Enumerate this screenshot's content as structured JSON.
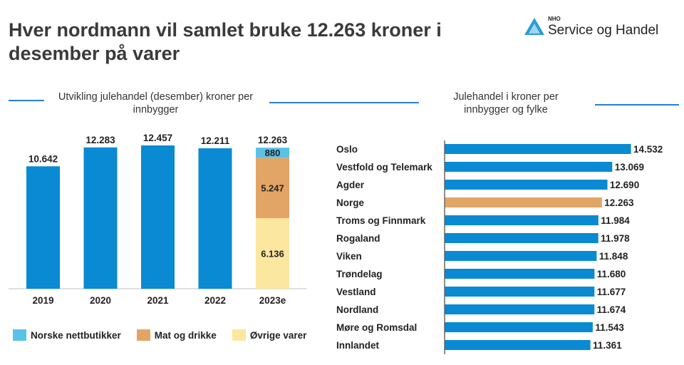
{
  "header": {
    "title": "Hver nordmann vil samlet bruke 12.263 kroner i desember på varer",
    "logo_small": "NHO",
    "logo_main": "Service og Handel"
  },
  "colors": {
    "bar_blue": "#0a8ad2",
    "accent_orange": "#e3a566",
    "nettbutikker": "#5bc2e7",
    "mat": "#e3a566",
    "ovrige": "#fbe7a0",
    "logo_blue": "#2a9ad8"
  },
  "chart_data": [
    {
      "type": "bar",
      "title": "Utvikling julehandel (desember) kroner per innbygger",
      "categories": [
        "2019",
        "2020",
        "2021",
        "2022",
        "2023e"
      ],
      "values": [
        10642,
        12283,
        12457,
        12211,
        12263
      ],
      "value_labels": [
        "10.642",
        "12.283",
        "12.457",
        "12.211",
        "12.263"
      ],
      "ylim": [
        0,
        12457
      ],
      "stacked_2023e": {
        "segments": [
          {
            "name": "Øvrige varer",
            "value": 6136,
            "label": "6.136"
          },
          {
            "name": "Mat og drikke",
            "value": 5247,
            "label": "5.247"
          },
          {
            "name": "Norske nettbutikker",
            "value": 880,
            "label": "880"
          }
        ]
      },
      "legend": [
        "Norske nettbutikker",
        "Mat og drikke",
        "Øvrige varer"
      ],
      "legend_placement": "bottom"
    },
    {
      "type": "bar",
      "orientation": "horizontal",
      "title": "Julehandel i kroner per innbygger og fylke",
      "categories": [
        "Oslo",
        "Vestfold og Telemark",
        "Agder",
        "Norge",
        "Troms og Finnmark",
        "Rogaland",
        "Viken",
        "Trøndelag",
        "Vestland",
        "Nordland",
        "Møre og Romsdal",
        "Innlandet"
      ],
      "values": [
        14532,
        13069,
        12690,
        12263,
        11984,
        11978,
        11848,
        11680,
        11677,
        11674,
        11543,
        11361
      ],
      "value_labels": [
        "14.532",
        "13.069",
        "12.690",
        "12.263",
        "11.984",
        "11.978",
        "11.848",
        "11.680",
        "11.677",
        "11.674",
        "11.543",
        "11.361"
      ],
      "highlight": "Norge"
    }
  ]
}
